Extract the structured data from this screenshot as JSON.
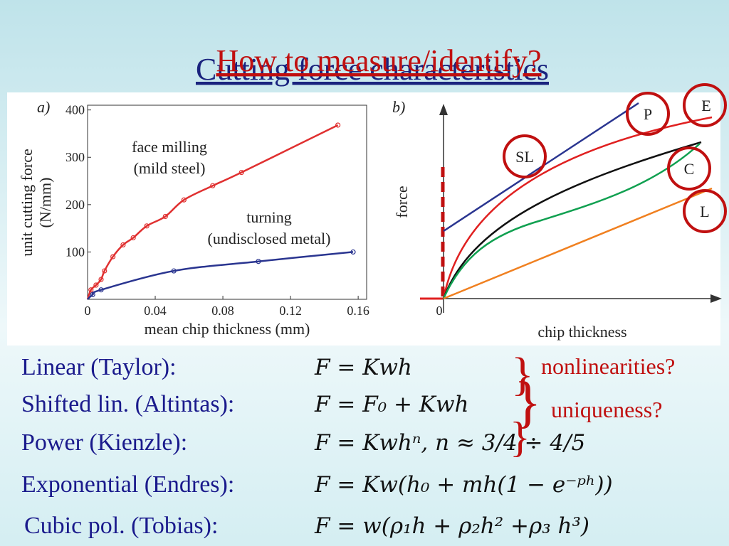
{
  "titles": [
    "Cutting force characteristics",
    "How to measure/identify?"
  ],
  "chart_data": [
    {
      "type": "scatter",
      "panel_label": "a)",
      "xlabel": "mean chip thickness (mm)",
      "ylabel": [
        "unit cutting force",
        "(N/mm)"
      ],
      "xlim": [
        0,
        0.165
      ],
      "xticks": [
        0,
        0.04,
        0.08,
        0.12,
        0.16
      ],
      "ylim": [
        0,
        410
      ],
      "yticks": [
        100,
        200,
        300,
        400
      ],
      "annotations": [
        [
          "face milling",
          "(mild steel)"
        ],
        [
          "turning",
          "(undisclosed metal)"
        ]
      ],
      "series": [
        {
          "color": "#e03030",
          "x": [
            0.002,
            0.005,
            0.008,
            0.01,
            0.015,
            0.021,
            0.027,
            0.035,
            0.046,
            0.057,
            0.074,
            0.091,
            0.148
          ],
          "values": [
            20,
            30,
            42,
            60,
            90,
            115,
            130,
            155,
            175,
            210,
            240,
            268,
            368
          ]
        },
        {
          "color": "#2a3590",
          "x": [
            0.003,
            0.008,
            0.051,
            0.101,
            0.157
          ],
          "values": [
            10,
            20,
            60,
            80,
            100
          ]
        }
      ]
    },
    {
      "type": "line",
      "panel_label": "b)",
      "xlabel": "chip thickness",
      "ylabel": "force",
      "origin_label": "0",
      "curve_labels": [
        "SL",
        "P",
        "E",
        "C",
        "L"
      ]
    }
  ],
  "models": [
    {
      "name": "Linear (Taylor):",
      "formula": "F = Kwh"
    },
    {
      "name": "Shifted lin. (Altintas):",
      "formula": "F = F₀ + Kwh"
    },
    {
      "name": "Power (Kienzle):",
      "formula": "F = Kwhⁿ, n ≈ 3/4 ÷ 4/5"
    },
    {
      "name": "Exponential (Endres):",
      "formula": "F = Kw(h₀ + mh(1 − e⁻ᵖʰ))"
    },
    {
      "name": "Cubic pol. (Tobias):",
      "formula": "F = w(ρ₁h + ρ₂h² +ρ₃ h³)"
    }
  ],
  "questions": [
    "nonlinearities?",
    "uniqueness?"
  ]
}
